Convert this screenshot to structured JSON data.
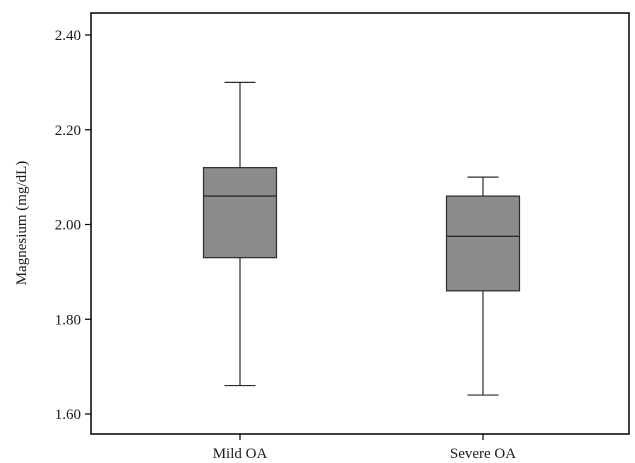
{
  "chart_data": {
    "type": "boxplot",
    "title": "",
    "xlabel": "",
    "ylabel": "Magnesium (mg/dL)",
    "ylim": [
      1.6,
      2.4
    ],
    "yticks": [
      1.6,
      1.8,
      2.0,
      2.2,
      2.4
    ],
    "ytick_labels": [
      "1.60",
      "1.80",
      "2.00",
      "2.20",
      "2.40"
    ],
    "categories": [
      "Mild OA",
      "Severe OA"
    ],
    "boxes": [
      {
        "category": "Mild OA",
        "min": 1.66,
        "q1": 1.93,
        "median": 2.06,
        "q3": 2.12,
        "max": 2.3
      },
      {
        "category": "Severe OA",
        "min": 1.64,
        "q1": 1.86,
        "median": 1.975,
        "q3": 2.06,
        "max": 2.1
      }
    ],
    "grid": false,
    "colors": {
      "box_fill": "#8c8c8c",
      "box_stroke": "#2b2b2b",
      "axis": "#000000"
    }
  }
}
